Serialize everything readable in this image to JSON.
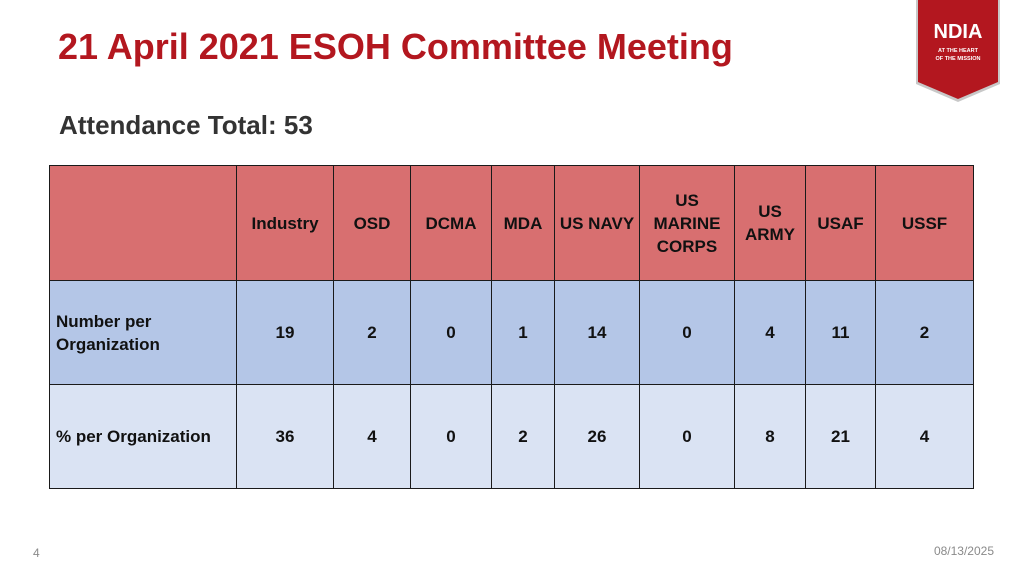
{
  "slide": {
    "title": "21 April 2021 ESOH Committee Meeting",
    "subtitle": "Attendance Total: 53",
    "page_number": "4",
    "date": "08/13/2025"
  },
  "logo": {
    "text": "NDIA",
    "tagline_1": "AT THE HEART",
    "tagline_2": "OF THE MISSION",
    "color": "#b3171f"
  },
  "table": {
    "corner": "",
    "columns": [
      "Industry",
      "OSD",
      "DCMA",
      "MDA",
      "US NAVY",
      "US MARINE CORPS",
      "US ARMY",
      "USAF",
      "USSF"
    ],
    "rows": [
      {
        "label": "Number per Organization",
        "values": [
          "19",
          "2",
          "0",
          "1",
          "14",
          "0",
          "4",
          "11",
          "2"
        ]
      },
      {
        "label": "% per Organization",
        "values": [
          "36",
          "4",
          "0",
          "2",
          "26",
          "0",
          "8",
          "21",
          "4"
        ]
      }
    ]
  },
  "colors": {
    "title": "#b3171f",
    "header_fill": "#d86f70",
    "number_row_fill": "#b4c6e7",
    "percent_row_fill": "#dae3f3"
  }
}
